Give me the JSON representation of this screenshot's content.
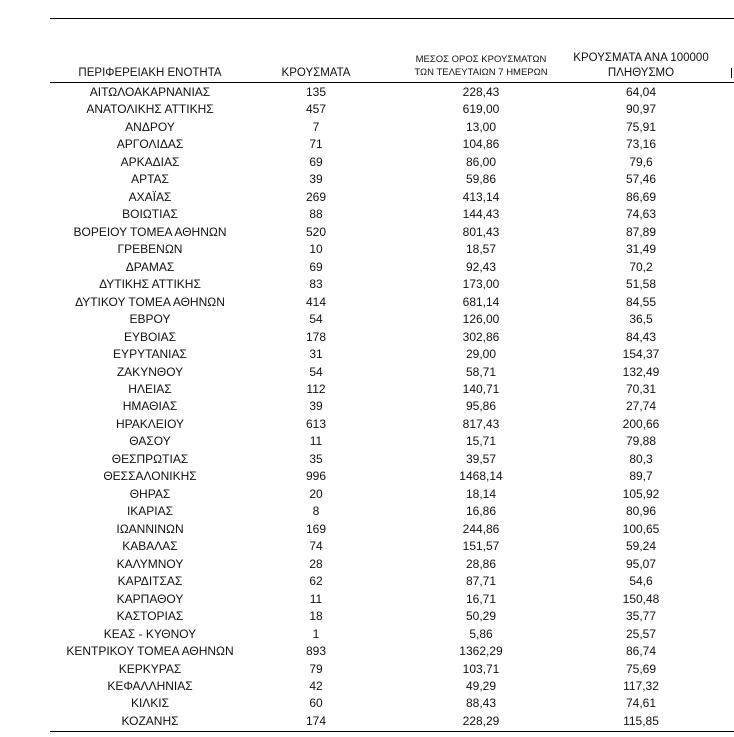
{
  "table": {
    "headers": [
      [
        "ΠΕΡΙΦΕΡΕΙΑΚΗ ΕΝΟΤΗΤΑ"
      ],
      [
        "ΚΡΟΥΣΜΑΤΑ"
      ],
      [
        "ΜΕΣΟΣ ΟΡΟΣ ΚΡΟΥΣΜΑΤΩΝ",
        "ΤΩΝ ΤΕΛΕΥΤΑΙΩΝ 7 ΗΜΕΡΩΝ"
      ],
      [
        "ΚΡΟΥΣΜΑΤΑ ΑΝΑ 100000",
        "ΠΛΗΘΥΣΜΟ"
      ]
    ],
    "rows": [
      [
        "ΑΙΤΩΛΟΑΚΑΡΝΑΝΙΑΣ",
        "135",
        "228,43",
        "64,04"
      ],
      [
        "ΑΝΑΤΟΛΙΚΗΣ ΑΤΤΙΚΗΣ",
        "457",
        "619,00",
        "90,97"
      ],
      [
        "ΑΝΔΡΟΥ",
        "7",
        "13,00",
        "75,91"
      ],
      [
        "ΑΡΓΟΛΙΔΑΣ",
        "71",
        "104,86",
        "73,16"
      ],
      [
        "ΑΡΚΑΔΙΑΣ",
        "69",
        "86,00",
        "79,6"
      ],
      [
        "ΑΡΤΑΣ",
        "39",
        "59,86",
        "57,46"
      ],
      [
        "ΑΧΑΪΑΣ",
        "269",
        "413,14",
        "86,69"
      ],
      [
        "ΒΟΙΩΤΙΑΣ",
        "88",
        "144,43",
        "74,63"
      ],
      [
        "ΒΟΡΕΙΟΥ ΤΟΜΕΑ ΑΘΗΝΩΝ",
        "520",
        "801,43",
        "87,89"
      ],
      [
        "ΓΡΕΒΕΝΩΝ",
        "10",
        "18,57",
        "31,49"
      ],
      [
        "ΔΡΑΜΑΣ",
        "69",
        "92,43",
        "70,2"
      ],
      [
        "ΔΥΤΙΚΗΣ ΑΤΤΙΚΗΣ",
        "83",
        "173,00",
        "51,58"
      ],
      [
        "ΔΥΤΙΚΟΥ ΤΟΜΕΑ ΑΘΗΝΩΝ",
        "414",
        "681,14",
        "84,55"
      ],
      [
        "ΕΒΡΟΥ",
        "54",
        "126,00",
        "36,5"
      ],
      [
        "ΕΥΒΟΙΑΣ",
        "178",
        "302,86",
        "84,43"
      ],
      [
        "ΕΥΡΥΤΑΝΙΑΣ",
        "31",
        "29,00",
        "154,37"
      ],
      [
        "ΖΑΚΥΝΘΟΥ",
        "54",
        "58,71",
        "132,49"
      ],
      [
        "ΗΛΕΙΑΣ",
        "112",
        "140,71",
        "70,31"
      ],
      [
        "ΗΜΑΘΙΑΣ",
        "39",
        "95,86",
        "27,74"
      ],
      [
        "ΗΡΑΚΛΕΙΟΥ",
        "613",
        "817,43",
        "200,66"
      ],
      [
        "ΘΑΣΟΥ",
        "11",
        "15,71",
        "79,88"
      ],
      [
        "ΘΕΣΠΡΩΤΙΑΣ",
        "35",
        "39,57",
        "80,3"
      ],
      [
        "ΘΕΣΣΑΛΟΝΙΚΗΣ",
        "996",
        "1468,14",
        "89,7"
      ],
      [
        "ΘΗΡΑΣ",
        "20",
        "18,14",
        "105,92"
      ],
      [
        "ΙΚΑΡΙΑΣ",
        "8",
        "16,86",
        "80,96"
      ],
      [
        "ΙΩΑΝΝΙΝΩΝ",
        "169",
        "244,86",
        "100,65"
      ],
      [
        "ΚΑΒΑΛΑΣ",
        "74",
        "151,57",
        "59,24"
      ],
      [
        "ΚΑΛΥΜΝΟΥ",
        "28",
        "28,86",
        "95,07"
      ],
      [
        "ΚΑΡΔΙΤΣΑΣ",
        "62",
        "87,71",
        "54,6"
      ],
      [
        "ΚΑΡΠΑΘΟΥ",
        "11",
        "16,71",
        "150,48"
      ],
      [
        "ΚΑΣΤΟΡΙΑΣ",
        "18",
        "50,29",
        "35,77"
      ],
      [
        "ΚΕΑΣ - ΚΥΘΝΟΥ",
        "1",
        "5,86",
        "25,57"
      ],
      [
        "ΚΕΝΤΡΙΚΟΥ ΤΟΜΕΑ ΑΘΗΝΩΝ",
        "893",
        "1362,29",
        "86,74"
      ],
      [
        "ΚΕΡΚΥΡΑΣ",
        "79",
        "103,71",
        "75,69"
      ],
      [
        "ΚΕΦΑΛΛΗΝΙΑΣ",
        "42",
        "49,29",
        "117,32"
      ],
      [
        "ΚΙΛΚΙΣ",
        "60",
        "88,43",
        "74,61"
      ],
      [
        "ΚΟΖΑΝΗΣ",
        "174",
        "228,29",
        "115,85"
      ]
    ]
  }
}
